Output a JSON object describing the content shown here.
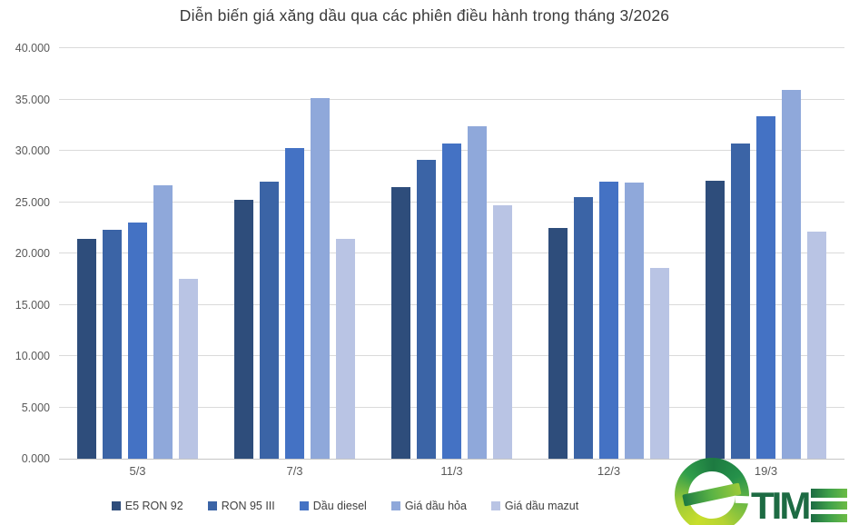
{
  "title": "Diễn biến giá xăng dầu qua các phiên điều hành trong tháng 3/2026",
  "chart_data": {
    "type": "bar",
    "categories": [
      "5/3",
      "7/3",
      "11/3",
      "12/3",
      "19/3"
    ],
    "series": [
      {
        "name": "E5 RON 92",
        "color": "#2E4D7B",
        "values": [
          21400,
          25200,
          26500,
          22500,
          27100
        ]
      },
      {
        "name": "RON 95 III",
        "color": "#3B64A6",
        "values": [
          22300,
          27000,
          29100,
          25500,
          30700
        ]
      },
      {
        "name": "Dầu diesel",
        "color": "#4472C4",
        "values": [
          23000,
          30300,
          30700,
          27000,
          33400
        ]
      },
      {
        "name": "Giá dầu hỏa",
        "color": "#8FA8DA",
        "values": [
          26600,
          35100,
          32400,
          26900,
          35900
        ]
      },
      {
        "name": "Giá dầu mazut",
        "color": "#B9C4E4",
        "values": [
          17500,
          21400,
          24700,
          18600,
          22100
        ]
      }
    ],
    "ylim": [
      0,
      40000
    ],
    "ytick_step": 5000,
    "ytick_labels": [
      "0.000",
      "5.000",
      "10.000",
      "15.000",
      "20.000",
      "25.000",
      "30.000",
      "35.000",
      "40.000"
    ],
    "grid": true,
    "gridline_color": "#dadada",
    "legend_position": "bottom"
  },
  "logo": {
    "brand": "eTIME",
    "text_tim": "TIM",
    "color_dark_green": "#1d6b43",
    "color_lime": "#b5d333"
  }
}
